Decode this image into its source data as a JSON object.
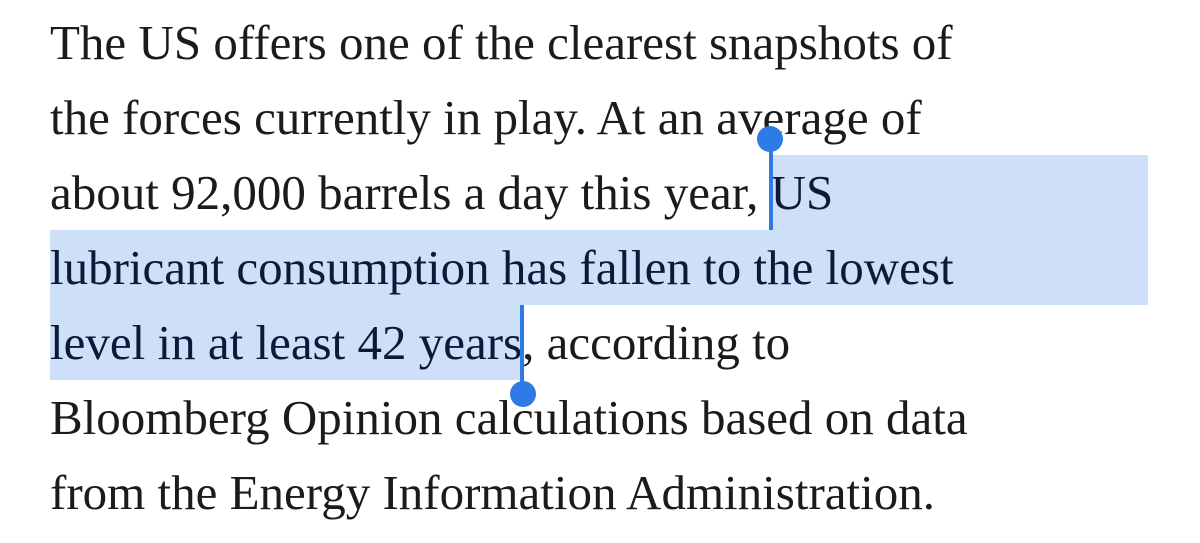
{
  "paragraph": {
    "lines": [
      [
        {
          "text": "The US offers one of the clearest snapshots of"
        }
      ],
      [
        {
          "text": "the forces currently in play. At an average of"
        }
      ],
      [
        {
          "text": "about 92,000 barrels a day this year, "
        },
        {
          "text": "US",
          "selected": true
        }
      ],
      [
        {
          "text": "lubricant consumption has fallen to the lowest",
          "selected": true
        }
      ],
      [
        {
          "text": "level in at least 42 years",
          "selected": true
        },
        {
          "text": ", according to"
        }
      ],
      [
        {
          "text": "Bloomberg Opinion calculations based on data"
        }
      ],
      [
        {
          "text": "from the Energy Information Administration."
        }
      ]
    ]
  }
}
